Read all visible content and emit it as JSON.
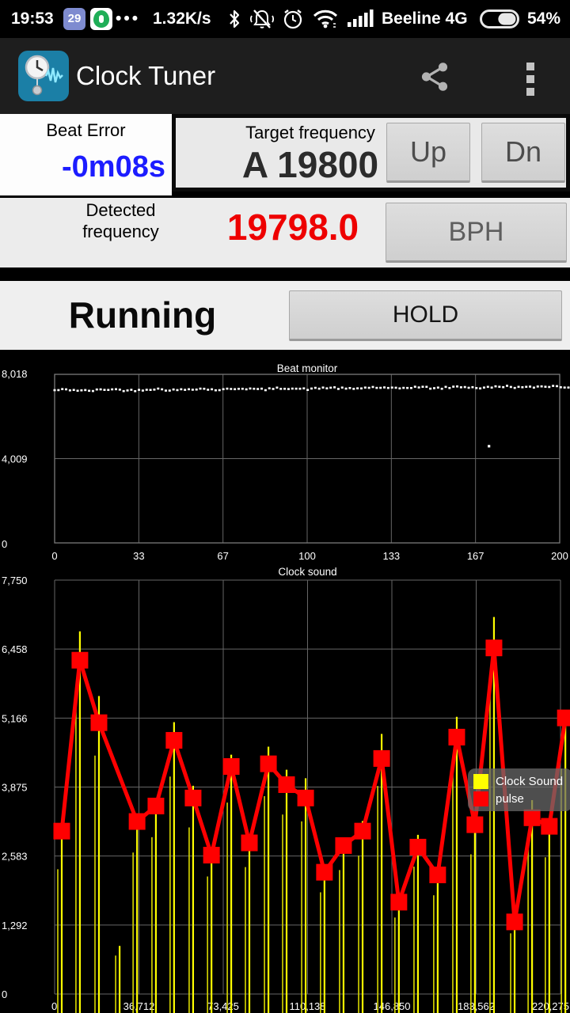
{
  "status_bar": {
    "time": "19:53",
    "badge_count": "29",
    "dots": "•••",
    "net_speed": "1.32K/s",
    "carrier": "Beeline 4G",
    "battery_pct": "54%",
    "battery_level": 0.54
  },
  "app_bar": {
    "title": "Clock Tuner"
  },
  "beat_error": {
    "label": "Beat Error",
    "value": "-0m08s"
  },
  "target_frequency": {
    "label": "Target frequency",
    "value": "A 19800",
    "up_label": "Up",
    "dn_label": "Dn"
  },
  "detected_frequency": {
    "label_line1": "Detected",
    "label_line2": "frequency",
    "value": "19798.0",
    "bph_label": "BPH"
  },
  "run_status": {
    "label": "Running",
    "hold_label": "HOLD"
  },
  "colors": {
    "beat_error_blue": "#1c1cff",
    "detected_red": "#ee0000",
    "spike_yellow": "#ffff00",
    "pulse_red": "#ff0000",
    "grid_gray": "#666666",
    "chart_text": "#ffffff"
  },
  "chart_data": [
    {
      "type": "scatter",
      "title": "Beat monitor",
      "xlim": [
        0,
        200
      ],
      "ylim": [
        0,
        8018
      ],
      "x_ticks": [
        "0",
        "33",
        "67",
        "100",
        "133",
        "167",
        "200"
      ],
      "y_ticks": [
        "8,018",
        "4,009",
        "0"
      ],
      "grid": true,
      "trend": {
        "y_start": 7255,
        "y_end": 7435,
        "noise": 90,
        "count": 135
      },
      "outlier": {
        "x": 172,
        "y": 4600
      }
    },
    {
      "type": "line",
      "title": "Clock sound",
      "xlim": [
        0,
        220275
      ],
      "ylim": [
        0,
        7750
      ],
      "x_ticks": [
        "0",
        "36,712",
        "73,425",
        "110,138",
        "146,850",
        "183,562",
        "220,275"
      ],
      "y_ticks": [
        "7,750",
        "6,458",
        "5,166",
        "3,875",
        "2,583",
        "1,292",
        "0"
      ],
      "grid": true,
      "legend": [
        "Clock Sound",
        "pulse"
      ],
      "legend_position": "middle-right",
      "series": [
        {
          "name": "Clock Sound",
          "color": "#ffff00",
          "style": "spike",
          "points": [
            [
              3100,
              2920
            ],
            [
              11000,
              6790
            ],
            [
              19300,
              5580
            ],
            [
              28300,
              900
            ],
            [
              35900,
              3310
            ],
            [
              44100,
              3670
            ],
            [
              52000,
              5090
            ],
            [
              60300,
              3900
            ],
            [
              68300,
              2750
            ],
            [
              76900,
              4480
            ],
            [
              84800,
              2970
            ],
            [
              93100,
              4630
            ],
            [
              101000,
              4200
            ],
            [
              109300,
              4040
            ],
            [
              117500,
              2380
            ],
            [
              125800,
              2900
            ],
            [
              134100,
              3240
            ],
            [
              142400,
              4870
            ],
            [
              149900,
              1790
            ],
            [
              158200,
              2980
            ],
            [
              166800,
              2310
            ],
            [
              175100,
              5190
            ],
            [
              183000,
              3270
            ],
            [
              191300,
              7060
            ],
            [
              200300,
              1420
            ],
            [
              207900,
              3630
            ],
            [
              215400,
              3200
            ],
            [
              222400,
              5270
            ]
          ]
        },
        {
          "name": "pulse",
          "color": "#ff0000",
          "style": "line-square-marker",
          "points": [
            [
              3100,
              3050
            ],
            [
              11000,
              6250
            ],
            [
              19300,
              5080
            ],
            [
              35900,
              3230
            ],
            [
              44100,
              3520
            ],
            [
              52000,
              4750
            ],
            [
              60300,
              3670
            ],
            [
              68300,
              2600
            ],
            [
              76900,
              4260
            ],
            [
              84800,
              2830
            ],
            [
              93100,
              4310
            ],
            [
              101000,
              3920
            ],
            [
              109300,
              3670
            ],
            [
              117500,
              2280
            ],
            [
              125800,
              2780
            ],
            [
              134100,
              3050
            ],
            [
              142400,
              4410
            ],
            [
              149900,
              1720
            ],
            [
              158200,
              2750
            ],
            [
              166800,
              2230
            ],
            [
              175100,
              4810
            ],
            [
              183000,
              3170
            ],
            [
              191300,
              6480
            ],
            [
              200300,
              1350
            ],
            [
              207900,
              3300
            ],
            [
              215400,
              3140
            ],
            [
              222400,
              5170
            ]
          ]
        }
      ]
    }
  ]
}
